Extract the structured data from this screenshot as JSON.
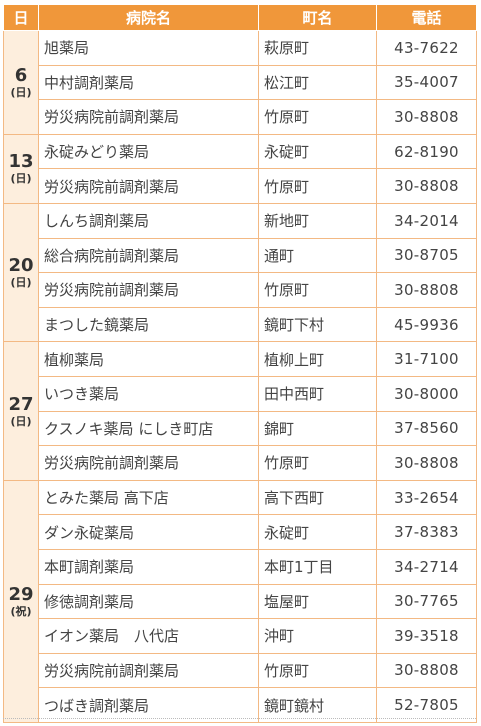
{
  "header": {
    "day": "日",
    "name": "病院名",
    "town": "町名",
    "tel": "電話"
  },
  "groups": [
    {
      "day": "6",
      "weekday": "(日)",
      "rows": [
        {
          "name": "旭薬局",
          "town": "萩原町",
          "tel": "43-7622"
        },
        {
          "name": "中村調剤薬局",
          "town": "松江町",
          "tel": "35-4007"
        },
        {
          "name": "労災病院前調剤薬局",
          "town": "竹原町",
          "tel": "30-8808"
        }
      ]
    },
    {
      "day": "13",
      "weekday": "(日)",
      "rows": [
        {
          "name": "永碇みどり薬局",
          "town": "永碇町",
          "tel": "62-8190"
        },
        {
          "name": "労災病院前調剤薬局",
          "town": "竹原町",
          "tel": "30-8808"
        }
      ]
    },
    {
      "day": "20",
      "weekday": "(日)",
      "rows": [
        {
          "name": "しんち調剤薬局",
          "town": "新地町",
          "tel": "34-2014"
        },
        {
          "name": "総合病院前調剤薬局",
          "town": "通町",
          "tel": "30-8705"
        },
        {
          "name": "労災病院前調剤薬局",
          "town": "竹原町",
          "tel": "30-8808"
        },
        {
          "name": "まつした鏡薬局",
          "town": "鏡町下村",
          "tel": "45-9936"
        }
      ]
    },
    {
      "day": "27",
      "weekday": "(日)",
      "rows": [
        {
          "name": "植柳薬局",
          "town": "植柳上町",
          "tel": "31-7100"
        },
        {
          "name": "いつき薬局",
          "town": "田中西町",
          "tel": "30-8000"
        },
        {
          "name": "クスノキ薬局 にしき町店",
          "town": "錦町",
          "tel": "37-8560"
        },
        {
          "name": "労災病院前調剤薬局",
          "town": "竹原町",
          "tel": "30-8808"
        }
      ]
    },
    {
      "day": "29",
      "weekday": "(祝)",
      "rows": [
        {
          "name": "とみた薬局 高下店",
          "town": "高下西町",
          "tel": "33-2654"
        },
        {
          "name": "ダン永碇薬局",
          "town": "永碇町",
          "tel": "37-8383"
        },
        {
          "name": "本町調剤薬局",
          "town": "本町1丁目",
          "tel": "34-2714"
        },
        {
          "name": "修徳調剤薬局",
          "town": "塩屋町",
          "tel": "30-7765"
        },
        {
          "name": "イオン薬局　八代店",
          "town": "沖町",
          "tel": "39-3518"
        },
        {
          "name": "労災病院前調剤薬局",
          "town": "竹原町",
          "tel": "30-8808"
        },
        {
          "name": "つばき調剤薬局",
          "town": "鏡町鏡村",
          "tel": "52-7805"
        }
      ]
    }
  ]
}
